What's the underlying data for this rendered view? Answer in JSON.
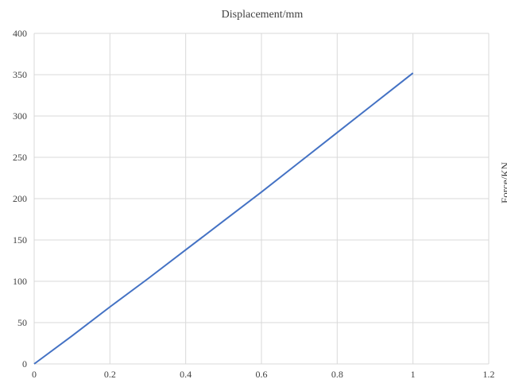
{
  "chart_data": {
    "type": "line",
    "title": "Displacement/mm",
    "xlabel": "",
    "ylabel": "Force/KN",
    "xlim": [
      0,
      1.2
    ],
    "ylim": [
      0,
      400
    ],
    "x_ticks": [
      "0",
      "0.2",
      "0.4",
      "0.6",
      "0.8",
      "1",
      "1.2"
    ],
    "y_ticks": [
      "0",
      "50",
      "100",
      "150",
      "200",
      "250",
      "300",
      "350",
      "400"
    ],
    "grid": true,
    "series": [
      {
        "color": "#4472c4",
        "x": [
          0,
          0.1,
          0.2,
          0.3,
          0.4,
          0.5,
          0.6,
          0.7,
          0.8,
          0.9,
          1.0
        ],
        "y": [
          0,
          34,
          69,
          103,
          138,
          173,
          208,
          244,
          280,
          316,
          352
        ]
      }
    ]
  }
}
